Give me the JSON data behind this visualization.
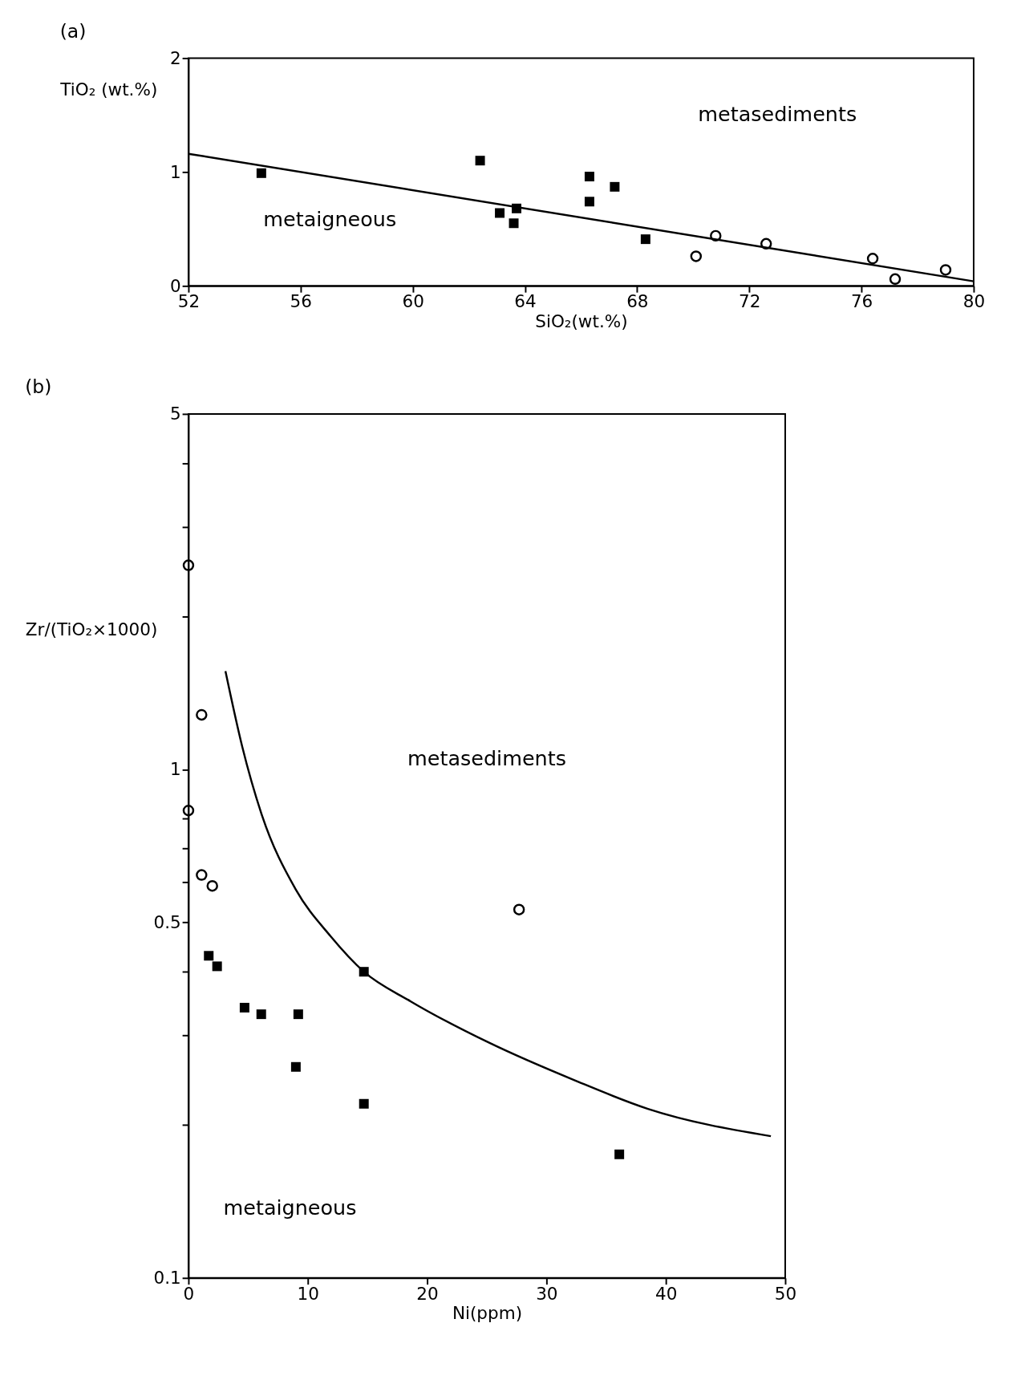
{
  "chart_data": [
    {
      "type": "scatter",
      "title": "(a)",
      "xlabel": "SiO₂(wt.%)",
      "ylabel": "TiO₂ (wt.%)",
      "xlim": [
        52,
        80
      ],
      "xticks": [
        52,
        56,
        60,
        64,
        68,
        72,
        76,
        80
      ],
      "ylim": [
        0,
        2
      ],
      "yticks": [
        0,
        1,
        2
      ],
      "annotations": [
        "metasediments",
        "metaigneous"
      ],
      "series": [
        {
          "marker": "square",
          "color": "#000000",
          "x": [
            54.6,
            62.4,
            63.1,
            63.6,
            63.7,
            66.3,
            66.3,
            67.2,
            68.3
          ],
          "values": [
            0.99,
            1.1,
            0.64,
            0.55,
            0.68,
            0.96,
            0.74,
            0.87,
            0.41
          ]
        },
        {
          "marker": "circle",
          "color": "#000000",
          "x": [
            70.1,
            70.8,
            72.6,
            76.4,
            77.2,
            79.0
          ],
          "values": [
            0.26,
            0.44,
            0.37,
            0.24,
            0.06,
            0.14
          ]
        },
        {
          "type": "line",
          "marker": "none",
          "color": "#000000",
          "x": [
            52,
            80
          ],
          "values": [
            1.16,
            0.04
          ]
        }
      ]
    },
    {
      "type": "scatter",
      "title": "(b)",
      "xlabel": "Ni(ppm)",
      "ylabel": "Zr/(TiO₂×1000)",
      "log": "y",
      "xlim": [
        0,
        50
      ],
      "xticks": [
        0,
        10,
        20,
        30,
        40,
        50
      ],
      "ylim": [
        0.1,
        5
      ],
      "yticks": [
        {
          "value": 0.1,
          "label": "0.1"
        },
        {
          "value": 0.2,
          "label": null
        },
        {
          "value": 0.3,
          "label": null
        },
        {
          "value": 0.4,
          "label": null
        },
        {
          "value": 0.5,
          "label": "0.5"
        },
        {
          "value": 0.6,
          "label": null
        },
        {
          "value": 0.7,
          "label": null
        },
        {
          "value": 0.8,
          "label": null
        },
        {
          "value": 1,
          "label": "1"
        },
        {
          "value": 2,
          "label": null
        },
        {
          "value": 3,
          "label": null
        },
        {
          "value": 4,
          "label": null
        },
        {
          "value": 5,
          "label": "5"
        }
      ],
      "annotations": [
        "metasediments",
        "metaigneous"
      ],
      "series": [
        {
          "marker": "circle",
          "color": "#000000",
          "x": [
            0,
            1.1,
            0,
            1.1,
            2.0,
            27.7
          ],
          "values": [
            2.52,
            1.28,
            0.83,
            0.62,
            0.59,
            0.53
          ]
        },
        {
          "marker": "square",
          "color": "#000000",
          "x": [
            1.7,
            2.4,
            4.7,
            6.1,
            9.2,
            9.0,
            14.7,
            14.7,
            36.1
          ],
          "values": [
            0.43,
            0.41,
            0.34,
            0.33,
            0.33,
            0.26,
            0.4,
            0.22,
            0.175
          ]
        },
        {
          "type": "line",
          "marker": "none",
          "color": "#000000",
          "x": [
            3.1,
            4.5,
            6.1,
            9.0,
            11.9,
            14.7,
            18.6,
            25.2,
            32.3,
            38.5,
            48.8
          ],
          "values": [
            1.56,
            1.11,
            0.82,
            0.58,
            0.47,
            0.4,
            0.35,
            0.29,
            0.245,
            0.215,
            0.19
          ]
        }
      ]
    }
  ]
}
